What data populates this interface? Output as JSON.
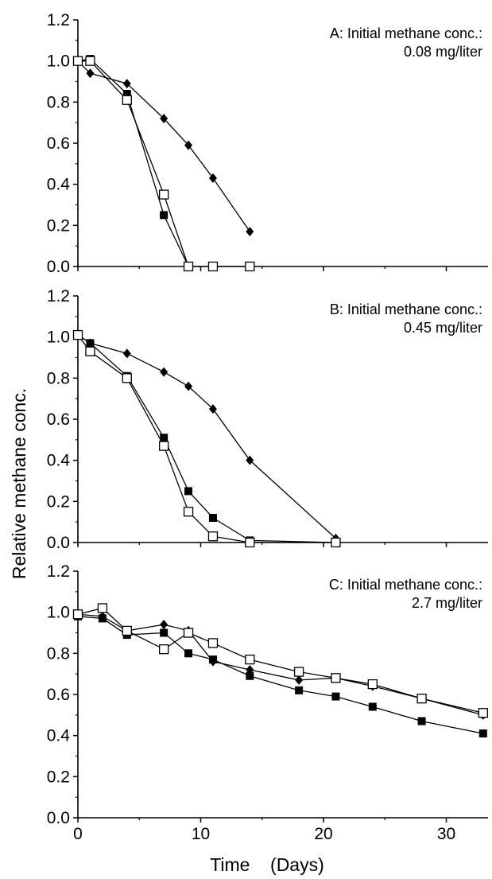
{
  "ylabel": "Relative methane conc.",
  "xlabel": "Time    (Days)",
  "x_ticks": [
    "0",
    "10",
    "20",
    "30"
  ],
  "y_ticks": [
    "0.0",
    "0.2",
    "0.4",
    "0.6",
    "0.8",
    "1.0",
    "1.2"
  ],
  "chart_data": [
    {
      "type": "line",
      "annotation_line1": "A: Initial methane conc.:",
      "annotation_line2": "0.08 mg/liter",
      "xlim": [
        0,
        35
      ],
      "ylim": [
        0,
        1.2
      ],
      "series": [
        {
          "marker": "diamond",
          "x": [
            0,
            1,
            4,
            7,
            9,
            11,
            14
          ],
          "y": [
            1.0,
            0.94,
            0.89,
            0.72,
            0.59,
            0.43,
            0.17
          ]
        },
        {
          "marker": "square-filled",
          "x": [
            0,
            1,
            4,
            7,
            9
          ],
          "y": [
            1.0,
            1.01,
            0.84,
            0.25,
            0.0
          ]
        },
        {
          "marker": "square-open",
          "x": [
            0,
            1,
            4,
            7,
            9,
            11,
            14
          ],
          "y": [
            1.0,
            1.0,
            0.81,
            0.35,
            0.0,
            0.0,
            0.0
          ]
        }
      ]
    },
    {
      "type": "line",
      "annotation_line1": "B: Initial methane conc.:",
      "annotation_line2": "0.45 mg/liter",
      "xlim": [
        0,
        35
      ],
      "ylim": [
        0,
        1.2
      ],
      "series": [
        {
          "marker": "diamond",
          "x": [
            0,
            1,
            4,
            7,
            9,
            11,
            14,
            21
          ],
          "y": [
            1.01,
            0.97,
            0.92,
            0.83,
            0.76,
            0.65,
            0.4,
            0.02
          ]
        },
        {
          "marker": "square-filled",
          "x": [
            0,
            1,
            4,
            7,
            9,
            11,
            14,
            21
          ],
          "y": [
            1.01,
            0.97,
            0.81,
            0.51,
            0.25,
            0.12,
            0.01,
            0.0
          ]
        },
        {
          "marker": "square-open",
          "x": [
            0,
            1,
            4,
            7,
            9,
            11,
            14,
            21
          ],
          "y": [
            1.01,
            0.93,
            0.8,
            0.47,
            0.15,
            0.03,
            0.0,
            0.0
          ]
        }
      ]
    },
    {
      "type": "line",
      "annotation_line1": "C: Initial methane conc.:",
      "annotation_line2": "2.7 mg/liter",
      "xlim": [
        0,
        35
      ],
      "ylim": [
        0,
        1.2
      ],
      "series": [
        {
          "marker": "diamond",
          "x": [
            0,
            2,
            4,
            7,
            9,
            11,
            14,
            18,
            21,
            24,
            28,
            33
          ],
          "y": [
            0.99,
            0.98,
            0.91,
            0.94,
            0.91,
            0.76,
            0.72,
            0.67,
            0.68,
            0.64,
            0.58,
            0.5
          ]
        },
        {
          "marker": "square-filled",
          "x": [
            0,
            2,
            4,
            7,
            9,
            11,
            14,
            18,
            21,
            24,
            28,
            33
          ],
          "y": [
            0.98,
            0.97,
            0.89,
            0.9,
            0.8,
            0.77,
            0.69,
            0.62,
            0.59,
            0.54,
            0.47,
            0.41
          ]
        },
        {
          "marker": "square-open",
          "x": [
            0,
            2,
            4,
            7,
            9,
            11,
            14,
            18,
            21,
            24,
            28,
            33
          ],
          "y": [
            0.99,
            1.02,
            0.91,
            0.82,
            0.9,
            0.85,
            0.77,
            0.71,
            0.68,
            0.65,
            0.58,
            0.51
          ]
        }
      ]
    }
  ]
}
